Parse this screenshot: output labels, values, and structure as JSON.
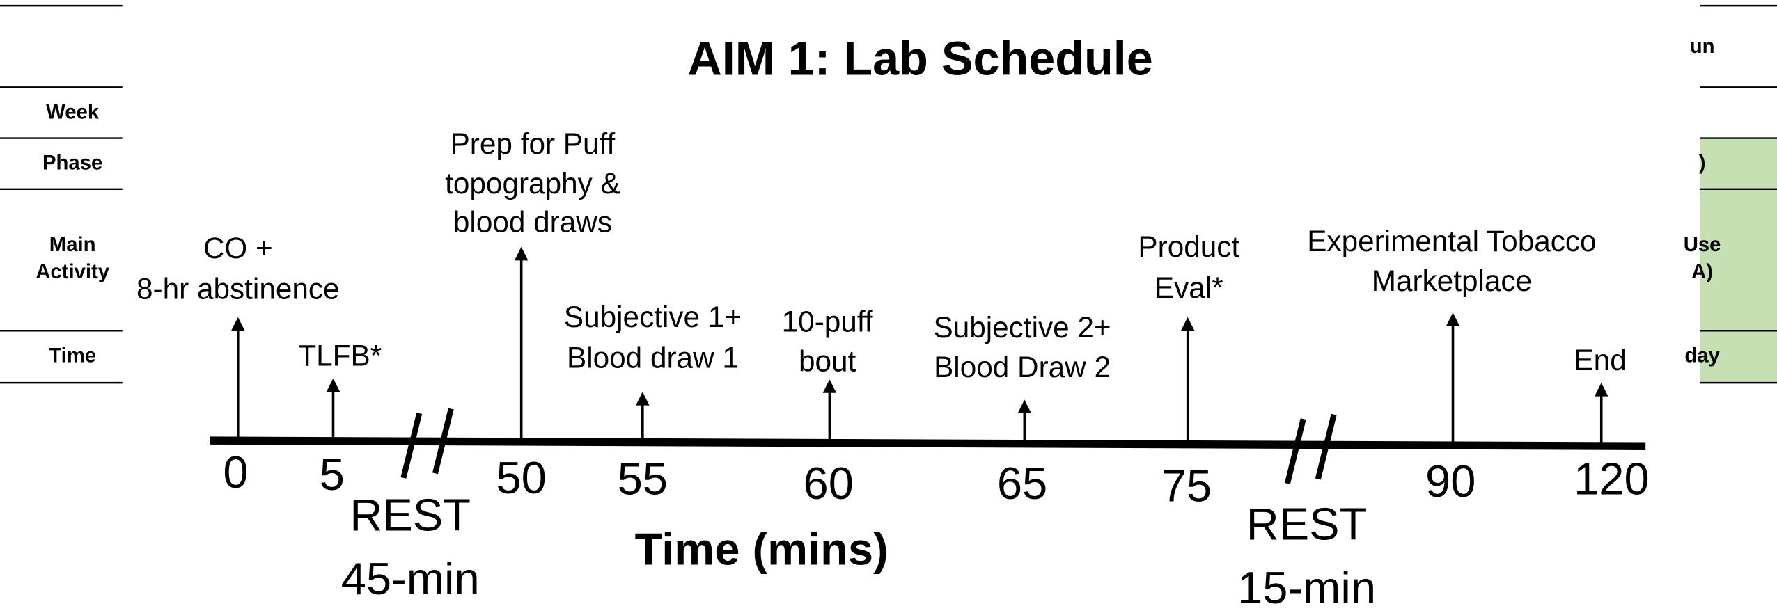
{
  "title": "AIM 1: Lab Schedule",
  "table_left": {
    "rows": [
      "Week",
      "Phase",
      "Main Activity",
      "Time"
    ]
  },
  "table_right": {
    "rows": [
      "un",
      ")",
      "Use",
      "A)",
      "day"
    ]
  },
  "timeline": {
    "ticks": [
      0,
      5,
      50,
      55,
      60,
      65,
      75,
      90,
      120
    ],
    "events": [
      {
        "lines": [
          "CO +",
          "8-hr abstinence"
        ]
      },
      {
        "lines": [
          "TLFB*"
        ]
      },
      {
        "lines": [
          "Prep for Puff",
          "topography &",
          "blood draws"
        ]
      },
      {
        "lines": [
          "Subjective 1+",
          "Blood draw 1"
        ]
      },
      {
        "lines": [
          "10-puff",
          "bout"
        ]
      },
      {
        "lines": [
          "Subjective 2+",
          "Blood Draw 2"
        ]
      },
      {
        "lines": [
          "Product",
          "Eval*"
        ]
      },
      {
        "lines": [
          "Experimental Tobacco",
          "Marketplace"
        ]
      },
      {
        "lines": [
          "End"
        ]
      }
    ],
    "rests": [
      {
        "label": "REST",
        "duration": "45-min"
      },
      {
        "label": "REST",
        "duration": "15-min"
      }
    ],
    "axis_label": "Time (mins)"
  }
}
